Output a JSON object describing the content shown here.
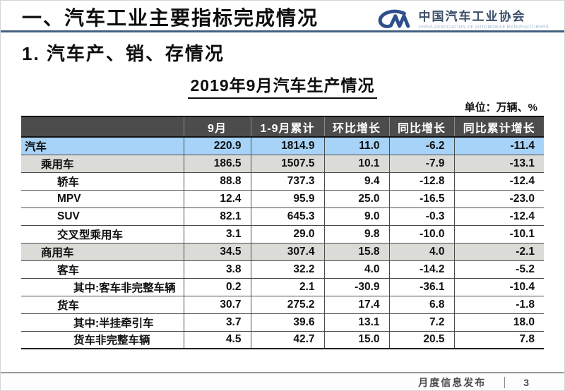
{
  "page": {
    "header_title": "一、汽车工业主要指标完成情况",
    "section_title": "1. 汽车产、销、存情况"
  },
  "logo": {
    "org_name_cn": "中国汽车工业协会",
    "org_name_en": "CHINA ASSOCIATION OF AUTOMOBILE MANUFACTURERS",
    "mark": "cam-cm-monogram",
    "mark_color": "#2e4f8c"
  },
  "table": {
    "title": "2019年9月汽车生产情况",
    "unit_label": "单位：万辆、%",
    "columns": [
      "",
      "9月",
      "1-9月累计",
      "环比增长",
      "同比增长",
      "同比累计增长"
    ],
    "rows": [
      {
        "label": "汽车",
        "indent": 0,
        "highlight": "blue",
        "values": [
          "220.9",
          "1814.9",
          "11.0",
          "-6.2",
          "-11.4"
        ]
      },
      {
        "label": "乘用车",
        "indent": 1,
        "highlight": "gray",
        "values": [
          "186.5",
          "1507.5",
          "10.1",
          "-7.9",
          "-13.1"
        ]
      },
      {
        "label": "轿车",
        "indent": 2,
        "highlight": "white",
        "values": [
          "88.8",
          "737.3",
          "9.4",
          "-12.8",
          "-12.4"
        ]
      },
      {
        "label": "MPV",
        "indent": 2,
        "highlight": "white",
        "values": [
          "12.4",
          "95.9",
          "25.0",
          "-16.5",
          "-23.0"
        ]
      },
      {
        "label": "SUV",
        "indent": 2,
        "highlight": "white",
        "values": [
          "82.1",
          "645.3",
          "9.0",
          "-0.3",
          "-12.4"
        ]
      },
      {
        "label": "交叉型乘用车",
        "indent": 2,
        "highlight": "white",
        "values": [
          "3.1",
          "29.0",
          "9.8",
          "-10.0",
          "-10.1"
        ]
      },
      {
        "label": "商用车",
        "indent": 1,
        "highlight": "gray",
        "values": [
          "34.5",
          "307.4",
          "15.8",
          "4.0",
          "-2.1"
        ]
      },
      {
        "label": "客车",
        "indent": 2,
        "highlight": "white",
        "values": [
          "3.8",
          "32.2",
          "4.0",
          "-14.2",
          "-5.2"
        ]
      },
      {
        "label": "其中:客车非完整车辆",
        "indent": 3,
        "highlight": "white",
        "values": [
          "0.2",
          "2.1",
          "-30.9",
          "-36.1",
          "-10.4"
        ]
      },
      {
        "label": "货车",
        "indent": 2,
        "highlight": "white",
        "values": [
          "30.7",
          "275.2",
          "17.4",
          "6.8",
          "-1.8"
        ]
      },
      {
        "label": "其中:半挂牵引车",
        "indent": 3,
        "highlight": "white",
        "values": [
          "3.7",
          "39.6",
          "13.1",
          "7.2",
          "18.0"
        ]
      },
      {
        "label": "货车非完整车辆",
        "indent": 3,
        "highlight": "white",
        "values": [
          "4.5",
          "42.7",
          "15.0",
          "20.5",
          "7.8"
        ]
      }
    ]
  },
  "colors": {
    "header_row_bg": "#4c4c4c",
    "highlight_blue": "#a6d3f7",
    "highlight_gray": "#dbdbd8",
    "title_rule_blue": "#42607d",
    "logo_blue": "#2e4f8c"
  },
  "footer": {
    "label": "月度信息发布",
    "page_number": "3"
  }
}
